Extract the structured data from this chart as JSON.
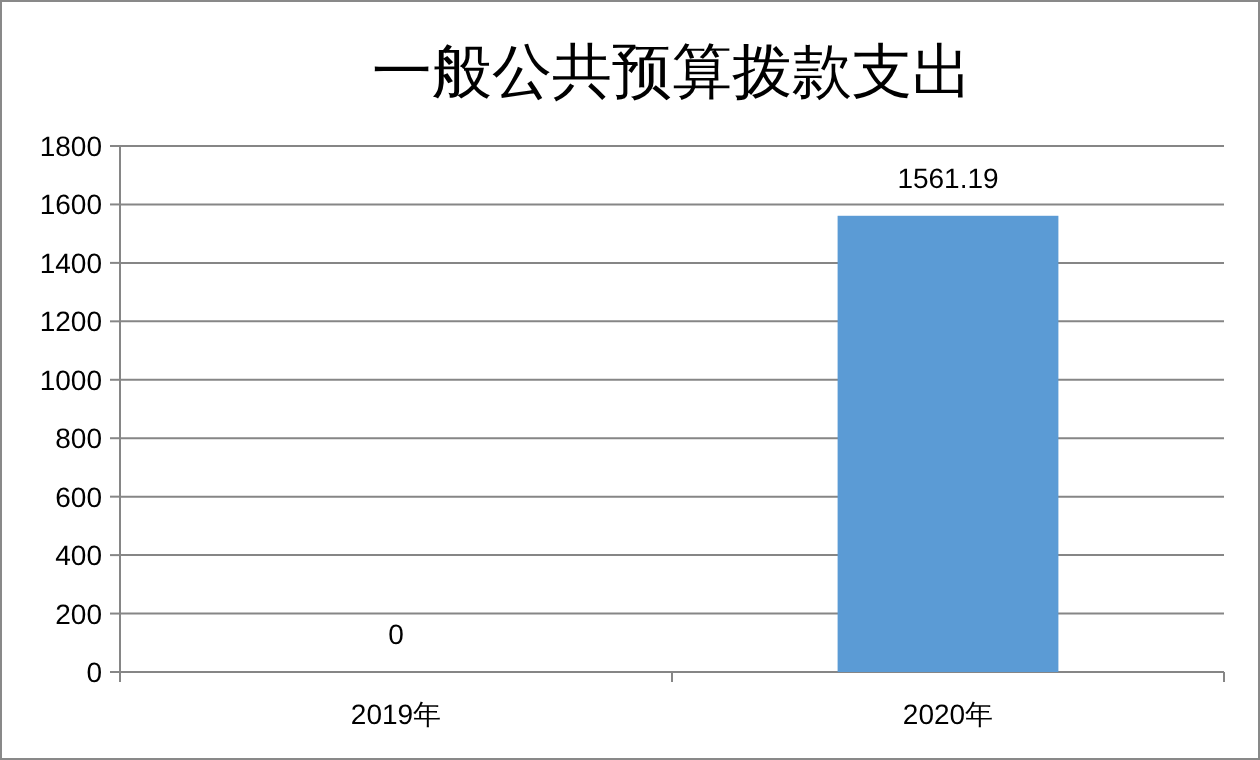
{
  "chart_data": {
    "type": "bar",
    "title": "一般公共预算拨款支出",
    "categories": [
      "2019年",
      "2020年"
    ],
    "values": [
      0,
      1561.19
    ],
    "color": "#5b9bd5",
    "ylim": [
      0,
      1800
    ],
    "yticks": [
      0,
      200,
      400,
      600,
      800,
      1000,
      1200,
      1400,
      1600,
      1800
    ],
    "grid": "y",
    "data_labels": true
  }
}
